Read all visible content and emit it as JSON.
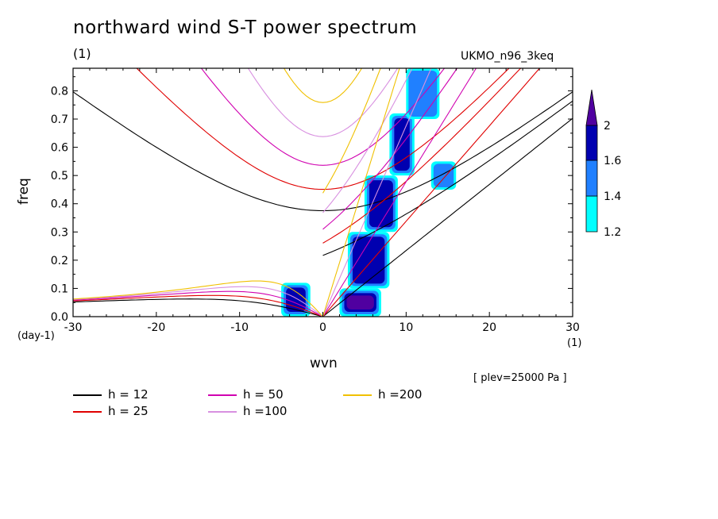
{
  "chart_data": {
    "type": "line",
    "title": "northward wind S-T power spectrum",
    "subtitle_left": "(1)",
    "subtitle_right": "UKMO_n96_3keq",
    "xlabel": "wvn",
    "xunit_left": "(day-1)",
    "xunit_right": "(1)",
    "ylabel": "freq",
    "annotation": "[ plev=25000 Pa ]",
    "xlim": [
      -30,
      30
    ],
    "ylim": [
      0,
      0.88
    ],
    "x_ticks": [
      -30,
      -20,
      -10,
      0,
      10,
      20,
      30
    ],
    "y_ticks": [
      0.0,
      0.1,
      0.2,
      0.3,
      0.4,
      0.5,
      0.6,
      0.7,
      0.8
    ],
    "x_tick_labels": [
      "-30",
      "-20",
      "-10",
      "0",
      "10",
      "20",
      "30"
    ],
    "y_tick_labels": [
      "0.0",
      "0.1",
      "0.2",
      "0.3",
      "0.4",
      "0.5",
      "0.6",
      "0.7",
      "0.8"
    ],
    "series": [
      {
        "name": "h = 12",
        "h": 12,
        "color": "#000000"
      },
      {
        "name": "h = 25",
        "h": 25,
        "color": "#e00000"
      },
      {
        "name": "h = 50",
        "h": 50,
        "color": "#d000b0"
      },
      {
        "name": "h =100",
        "h": 100,
        "color": "#d890e0"
      },
      {
        "name": "h =200",
        "h": 200,
        "color": "#f0c000"
      }
    ],
    "colorbar": {
      "levels": [
        "1.2",
        "1.4",
        "1.6",
        "2"
      ],
      "colors": [
        "#00ffff",
        "#2080ff",
        "#0000b0",
        "#5000a0"
      ]
    },
    "contour_regions": [
      {
        "x": [
          2,
          7
        ],
        "y": [
          0.0,
          0.1
        ],
        "level": 3
      },
      {
        "x": [
          -5,
          -1.5
        ],
        "y": [
          0.0,
          0.12
        ],
        "level": 2
      },
      {
        "x": [
          3,
          8
        ],
        "y": [
          0.1,
          0.3
        ],
        "level": 2
      },
      {
        "x": [
          5,
          9
        ],
        "y": [
          0.3,
          0.5
        ],
        "level": 2
      },
      {
        "x": [
          8,
          11
        ],
        "y": [
          0.5,
          0.72
        ],
        "level": 2
      },
      {
        "x": [
          10,
          14
        ],
        "y": [
          0.7,
          0.88
        ],
        "level": 1
      },
      {
        "x": [
          13,
          16
        ],
        "y": [
          0.45,
          0.55
        ],
        "level": 1
      }
    ]
  }
}
